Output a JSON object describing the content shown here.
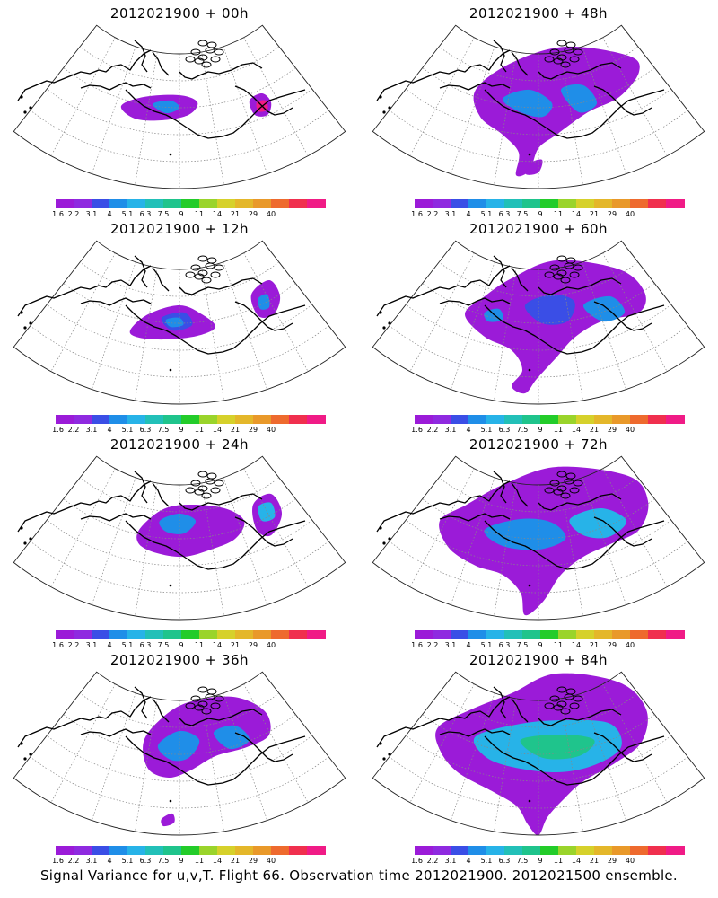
{
  "footer": "Signal Variance for u,v,T. Flight 66. Observation time 2012021900. 2012021500 ensemble.",
  "colorbar": {
    "colors": [
      "#9b1bd8",
      "#8f2ae0",
      "#3a4ee6",
      "#1f8ee8",
      "#27b3e8",
      "#22c0b8",
      "#1fc48c",
      "#23cc2a",
      "#9ad42b",
      "#d6d12b",
      "#e4b72a",
      "#e9992a",
      "#ee6a2e",
      "#f02f4e",
      "#f01b86"
    ],
    "labels": [
      "1.6",
      "2.2",
      "3.1",
      "4",
      "5.1",
      "6.3",
      "7.5",
      "9",
      "11",
      "14",
      "21",
      "29",
      "40"
    ]
  },
  "chart_data": [
    {
      "type": "heatmap",
      "title": "2012021900 + 00h",
      "lead_hours": 0,
      "colorbar_levels": [
        1.6,
        2.2,
        3.1,
        4,
        5.1,
        6.3,
        7.5,
        9,
        11,
        14,
        21,
        29,
        40
      ]
    },
    {
      "type": "heatmap",
      "title": "2012021900 + 48h",
      "lead_hours": 48,
      "colorbar_levels": [
        1.6,
        2.2,
        3.1,
        4,
        5.1,
        6.3,
        7.5,
        9,
        11,
        14,
        21,
        29,
        40
      ]
    },
    {
      "type": "heatmap",
      "title": "2012021900 + 12h",
      "lead_hours": 12,
      "colorbar_levels": [
        1.6,
        2.2,
        3.1,
        4,
        5.1,
        6.3,
        7.5,
        9,
        11,
        14,
        21,
        29,
        40
      ]
    },
    {
      "type": "heatmap",
      "title": "2012021900 + 60h",
      "lead_hours": 60,
      "colorbar_levels": [
        1.6,
        2.2,
        3.1,
        4,
        5.1,
        6.3,
        7.5,
        9,
        11,
        14,
        21,
        29,
        40
      ]
    },
    {
      "type": "heatmap",
      "title": "2012021900 + 24h",
      "lead_hours": 24,
      "colorbar_levels": [
        1.6,
        2.2,
        3.1,
        4,
        5.1,
        6.3,
        7.5,
        9,
        11,
        14,
        21,
        29,
        40
      ]
    },
    {
      "type": "heatmap",
      "title": "2012021900 + 72h",
      "lead_hours": 72,
      "colorbar_levels": [
        1.6,
        2.2,
        3.1,
        4,
        5.1,
        6.3,
        7.5,
        9,
        11,
        14,
        21,
        29,
        40
      ]
    },
    {
      "type": "heatmap",
      "title": "2012021900 + 36h",
      "lead_hours": 36,
      "colorbar_levels": [
        1.6,
        2.2,
        3.1,
        4,
        5.1,
        6.3,
        7.5,
        9,
        11,
        14,
        21,
        29,
        40
      ]
    },
    {
      "type": "heatmap",
      "title": "2012021900 + 84h",
      "lead_hours": 84,
      "colorbar_levels": [
        1.6,
        2.2,
        3.1,
        4,
        5.1,
        6.3,
        7.5,
        9,
        11,
        14,
        21,
        29,
        40
      ]
    }
  ]
}
